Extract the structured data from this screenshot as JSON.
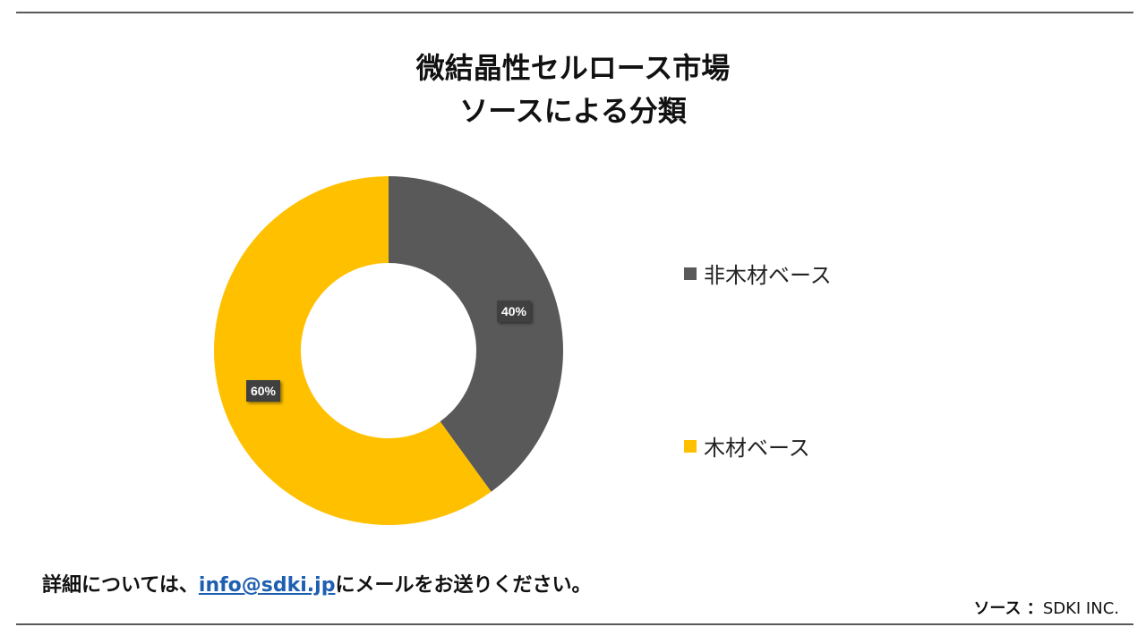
{
  "title": {
    "line1": "微結晶性セルロース市場",
    "line2": "ソースによる分類"
  },
  "colors": {
    "non_wood": "#595959",
    "wood": "#FFC000",
    "label_bg": "#404040",
    "rule": "#595959",
    "link": "#1F5FB0"
  },
  "chart_data": {
    "type": "pie",
    "variant": "donut",
    "categories": [
      "非木材ベース",
      "木材ベース"
    ],
    "values": [
      40,
      60
    ],
    "unit": "%",
    "data_labels": [
      "40%",
      "60%"
    ],
    "legend_position": "right"
  },
  "legend": {
    "items": [
      {
        "label": "非木材ベース",
        "color": "#595959"
      },
      {
        "label": "木材ベース",
        "color": "#FFC000"
      }
    ]
  },
  "footer": {
    "note_prefix": "詳細については、",
    "email": "info@sdki.jp",
    "note_suffix": "にメールをお送りください。",
    "source_label": "ソース ：",
    "source_value": "SDKI INC."
  }
}
